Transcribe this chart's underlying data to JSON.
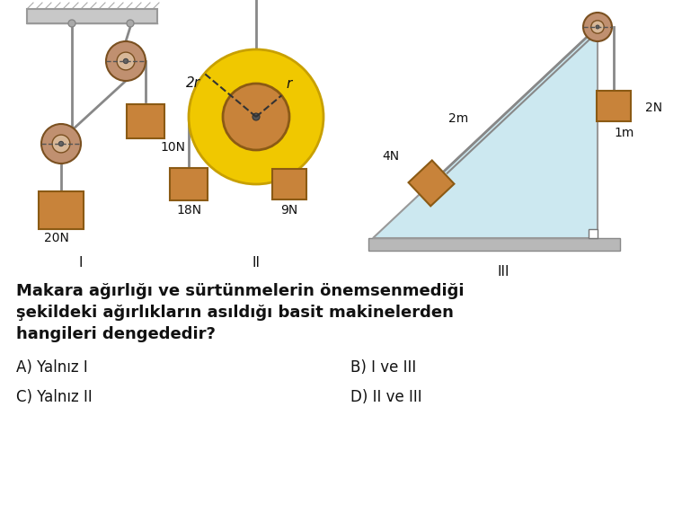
{
  "bg_color": "#ffffff",
  "question_text_line1": "Makara ağırlığı ve sürtünmelerin önemsenmediği",
  "question_text_line2": "şekildeki ağırlıkların asıldığı basit makinelerden",
  "question_text_line3": "hangileri dengededir?",
  "options": {
    "A": "Yalnız I",
    "B": "I ve III",
    "C": "Yalnız II",
    "D": "II ve III"
  },
  "pulley_face_color": "#c09070",
  "pulley_edge_color": "#7a5020",
  "pulley_inner_color": "#d8b898",
  "weight_color": "#c8833a",
  "weight_edge_color": "#8B5a14",
  "rope_color": "#888888",
  "ceiling_color": "#c0c0c0",
  "ceiling_edge": "#888888",
  "outer_circle_color": "#f0c800",
  "inner_circle_color": "#c8833a",
  "triangle_fill": "#cce8f0",
  "triangle_edge": "#aaaaaa",
  "text_color": "#111111",
  "label_fontsize": 11,
  "option_fontsize": 12,
  "question_fontsize": 13
}
